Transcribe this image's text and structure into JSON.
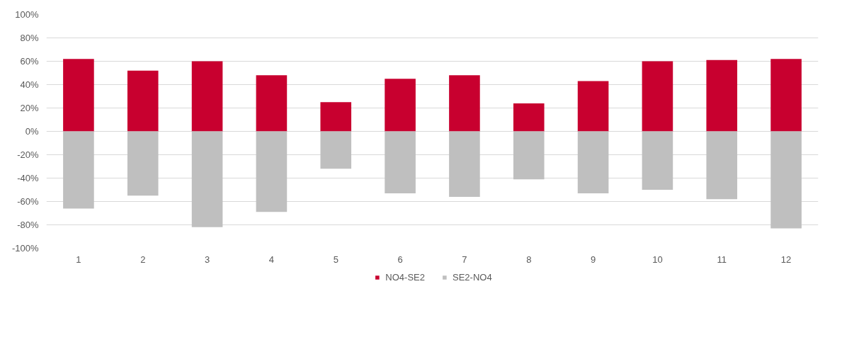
{
  "chart_data": {
    "type": "bar",
    "stacked": true,
    "categories": [
      "1",
      "2",
      "3",
      "4",
      "5",
      "6",
      "7",
      "8",
      "9",
      "10",
      "11",
      "12"
    ],
    "series": [
      {
        "name": "NO4-SE2",
        "color": "#c8002f",
        "values": [
          62,
          52,
          60,
          48,
          25,
          45,
          48,
          24,
          43,
          60,
          61,
          62
        ]
      },
      {
        "name": "SE2-NO4",
        "color": "#bfbfbf",
        "values": [
          -66,
          -55,
          -82,
          -69,
          -32,
          -53,
          -56,
          -41,
          -53,
          -50,
          -58,
          -83
        ]
      }
    ],
    "ylim": [
      -100,
      100
    ],
    "yticks": [
      {
        "value": -100,
        "label": "-100%"
      },
      {
        "value": -80,
        "label": "-80%"
      },
      {
        "value": -60,
        "label": "-60%"
      },
      {
        "value": -40,
        "label": "-40%"
      },
      {
        "value": -20,
        "label": "-20%"
      },
      {
        "value": 0,
        "label": "0%"
      },
      {
        "value": 20,
        "label": "20%"
      },
      {
        "value": 40,
        "label": "40%"
      },
      {
        "value": 60,
        "label": "60%"
      },
      {
        "value": 80,
        "label": "80%"
      },
      {
        "value": 100,
        "label": "100%"
      }
    ],
    "grid": "y",
    "legend": "bottom"
  }
}
